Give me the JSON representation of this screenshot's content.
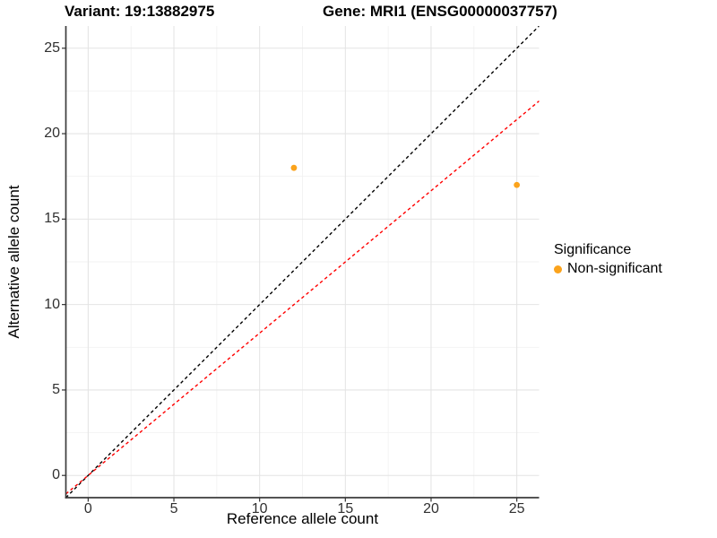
{
  "chart_data": {
    "type": "scatter",
    "titles": {
      "left": "Variant: 19:13882975",
      "right": "Gene: MRI1 (ENSG00000037757)"
    },
    "xlabel": "Reference allele count",
    "ylabel": "Alternative allele count",
    "xlim": [
      -1.3,
      26.3
    ],
    "ylim": [
      -1.3,
      26.3
    ],
    "xticks": [
      0,
      5,
      10,
      15,
      20,
      25
    ],
    "yticks": [
      0,
      5,
      10,
      15,
      20,
      25
    ],
    "grid": {
      "major": true,
      "minor": true
    },
    "series": [
      {
        "name": "Non-significant",
        "color": "#FBA31C",
        "points": [
          {
            "x": 12,
            "y": 18
          },
          {
            "x": 25,
            "y": 17
          }
        ]
      }
    ],
    "reference_lines": [
      {
        "name": "identity-line",
        "slope": 1,
        "intercept": 0,
        "color": "#000000",
        "style": "dashed"
      },
      {
        "name": "fit-line",
        "slope": 0.833,
        "intercept": 0,
        "color": "#FF0000",
        "style": "dashed"
      }
    ],
    "legend": {
      "position": "right",
      "title": "Significance",
      "items": [
        {
          "label": "Non-significant",
          "color": "#FBA31C"
        }
      ]
    },
    "colors": {
      "point": "#FBA31C",
      "grid_major": "#E4E4E4",
      "grid_minor": "#F2F2F2",
      "axis_line": "#3C3C3C",
      "tick_mark": "#333333",
      "tick_text": "#303030"
    }
  }
}
